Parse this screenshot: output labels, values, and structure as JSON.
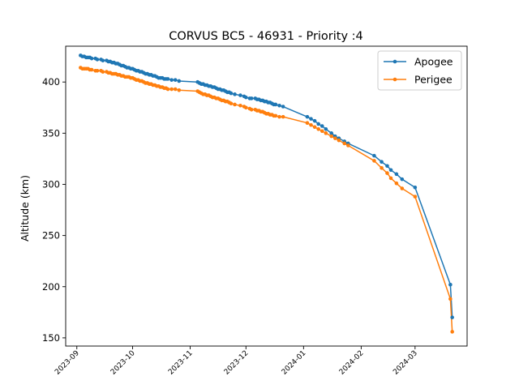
{
  "chart_data": {
    "type": "line",
    "title": "CORVUS BC5 - 46931 - Priority :4",
    "xlabel": "",
    "ylabel": "Altitude (km)",
    "x_ticks": [
      "2023-09",
      "2023-10",
      "2023-11",
      "2023-12",
      "2024-01",
      "2024-02",
      "2024-03"
    ],
    "y_ticks": [
      150,
      200,
      250,
      300,
      350,
      400
    ],
    "xlim": [
      "2023-08-26",
      "2024-03-29"
    ],
    "ylim": [
      142,
      435
    ],
    "legend_position": "top-right",
    "grid": false,
    "series": [
      {
        "name": "Apogee",
        "color": "#1f77b4",
        "x": [
          "2023-09-03",
          "2023-09-04",
          "2023-09-05",
          "2023-09-06",
          "2023-09-07",
          "2023-09-08",
          "2023-09-09",
          "2023-09-11",
          "2023-09-12",
          "2023-09-14",
          "2023-09-15",
          "2023-09-17",
          "2023-09-18",
          "2023-09-19",
          "2023-09-20",
          "2023-09-21",
          "2023-09-22",
          "2023-09-23",
          "2023-09-24",
          "2023-09-25",
          "2023-09-26",
          "2023-09-27",
          "2023-09-28",
          "2023-09-29",
          "2023-09-30",
          "2023-10-01",
          "2023-10-02",
          "2023-10-03",
          "2023-10-04",
          "2023-10-05",
          "2023-10-06",
          "2023-10-07",
          "2023-10-08",
          "2023-10-09",
          "2023-10-10",
          "2023-10-11",
          "2023-10-12",
          "2023-10-13",
          "2023-10-14",
          "2023-10-15",
          "2023-10-16",
          "2023-10-17",
          "2023-10-18",
          "2023-10-19",
          "2023-10-20",
          "2023-10-22",
          "2023-10-24",
          "2023-10-26",
          "2023-11-05",
          "2023-11-06",
          "2023-11-07",
          "2023-11-08",
          "2023-11-09",
          "2023-11-10",
          "2023-11-11",
          "2023-11-12",
          "2023-11-13",
          "2023-11-14",
          "2023-11-15",
          "2023-11-16",
          "2023-11-17",
          "2023-11-18",
          "2023-11-19",
          "2023-11-20",
          "2023-11-21",
          "2023-11-22",
          "2023-11-23",
          "2023-11-25",
          "2023-11-28",
          "2023-11-30",
          "2023-12-01",
          "2023-12-03",
          "2023-12-04",
          "2023-12-06",
          "2023-12-07",
          "2023-12-08",
          "2023-12-09",
          "2023-12-10",
          "2023-12-11",
          "2023-12-12",
          "2023-12-13",
          "2023-12-14",
          "2023-12-15",
          "2023-12-16",
          "2023-12-17",
          "2023-12-19",
          "2023-12-21",
          "2024-01-03",
          "2024-01-05",
          "2024-01-07",
          "2024-01-09",
          "2024-01-11",
          "2024-01-13",
          "2024-01-16",
          "2024-01-18",
          "2024-01-20",
          "2024-01-23",
          "2024-01-25",
          "2024-02-08",
          "2024-02-12",
          "2024-02-15",
          "2024-02-17",
          "2024-02-20",
          "2024-02-23",
          "2024-03-01",
          "2024-03-20",
          "2024-03-21"
        ],
        "y": [
          426,
          425,
          425,
          424,
          424,
          424,
          423,
          423,
          422,
          422,
          421,
          421,
          420,
          420,
          419,
          419,
          418,
          418,
          417,
          416,
          416,
          415,
          414,
          414,
          413,
          413,
          412,
          411,
          411,
          410,
          410,
          409,
          408,
          408,
          407,
          407,
          406,
          406,
          405,
          404,
          404,
          404,
          403,
          403,
          403,
          402,
          402,
          401,
          400,
          399,
          398,
          398,
          397,
          397,
          396,
          396,
          395,
          395,
          394,
          393,
          393,
          392,
          392,
          391,
          390,
          390,
          389,
          388,
          387,
          386,
          385,
          384,
          384,
          384,
          383,
          383,
          382,
          382,
          381,
          381,
          380,
          380,
          379,
          378,
          378,
          377,
          376,
          366,
          364,
          362,
          359,
          357,
          354,
          350,
          347,
          345,
          342,
          340,
          328,
          322,
          318,
          314,
          310,
          305,
          297,
          202,
          170
        ]
      },
      {
        "name": "Perigee",
        "color": "#ff7f0e",
        "x": [
          "2023-09-03",
          "2023-09-04",
          "2023-09-05",
          "2023-09-06",
          "2023-09-07",
          "2023-09-08",
          "2023-09-09",
          "2023-09-11",
          "2023-09-12",
          "2023-09-14",
          "2023-09-15",
          "2023-09-17",
          "2023-09-18",
          "2023-09-19",
          "2023-09-20",
          "2023-09-21",
          "2023-09-22",
          "2023-09-23",
          "2023-09-24",
          "2023-09-25",
          "2023-09-26",
          "2023-09-27",
          "2023-09-28",
          "2023-09-29",
          "2023-09-30",
          "2023-10-01",
          "2023-10-02",
          "2023-10-03",
          "2023-10-04",
          "2023-10-05",
          "2023-10-06",
          "2023-10-07",
          "2023-10-08",
          "2023-10-09",
          "2023-10-10",
          "2023-10-11",
          "2023-10-12",
          "2023-10-13",
          "2023-10-14",
          "2023-10-15",
          "2023-10-16",
          "2023-10-17",
          "2023-10-18",
          "2023-10-19",
          "2023-10-20",
          "2023-10-22",
          "2023-10-24",
          "2023-10-26",
          "2023-11-05",
          "2023-11-06",
          "2023-11-07",
          "2023-11-08",
          "2023-11-09",
          "2023-11-10",
          "2023-11-11",
          "2023-11-12",
          "2023-11-13",
          "2023-11-14",
          "2023-11-15",
          "2023-11-16",
          "2023-11-17",
          "2023-11-18",
          "2023-11-19",
          "2023-11-20",
          "2023-11-21",
          "2023-11-22",
          "2023-11-23",
          "2023-11-25",
          "2023-11-28",
          "2023-11-30",
          "2023-12-01",
          "2023-12-03",
          "2023-12-04",
          "2023-12-06",
          "2023-12-07",
          "2023-12-08",
          "2023-12-09",
          "2023-12-10",
          "2023-12-11",
          "2023-12-12",
          "2023-12-13",
          "2023-12-14",
          "2023-12-15",
          "2023-12-16",
          "2023-12-17",
          "2023-12-19",
          "2023-12-21",
          "2024-01-03",
          "2024-01-05",
          "2024-01-07",
          "2024-01-09",
          "2024-01-11",
          "2024-01-13",
          "2024-01-16",
          "2024-01-18",
          "2024-01-20",
          "2024-01-23",
          "2024-01-25",
          "2024-02-08",
          "2024-02-12",
          "2024-02-15",
          "2024-02-17",
          "2024-02-20",
          "2024-02-23",
          "2024-03-01",
          "2024-03-20",
          "2024-03-21"
        ],
        "y": [
          414,
          413,
          413,
          413,
          413,
          412,
          412,
          411,
          411,
          411,
          410,
          410,
          409,
          409,
          408,
          408,
          408,
          407,
          407,
          406,
          406,
          405,
          405,
          405,
          404,
          404,
          403,
          402,
          402,
          401,
          401,
          400,
          399,
          399,
          398,
          398,
          397,
          397,
          396,
          396,
          395,
          395,
          394,
          394,
          393,
          393,
          393,
          392,
          391,
          390,
          389,
          388,
          388,
          387,
          387,
          386,
          385,
          385,
          384,
          384,
          383,
          382,
          382,
          381,
          381,
          380,
          379,
          378,
          377,
          376,
          375,
          374,
          373,
          373,
          372,
          372,
          371,
          371,
          370,
          369,
          369,
          368,
          368,
          367,
          367,
          366,
          366,
          360,
          358,
          356,
          354,
          352,
          350,
          347,
          345,
          343,
          340,
          338,
          323,
          316,
          311,
          306,
          301,
          296,
          288,
          188,
          156
        ]
      }
    ]
  }
}
